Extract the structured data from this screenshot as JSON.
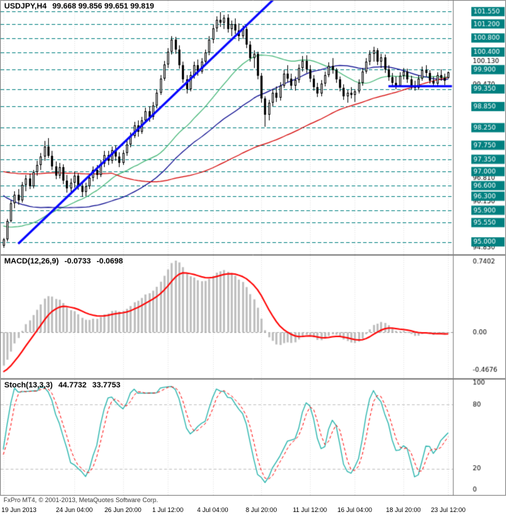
{
  "colors": {
    "background": "#FFFFFF",
    "panel_border": "#808080",
    "level_line": "#008080",
    "grid": "#E0E0E0",
    "candle_outline": "#000000",
    "candle_bull_fill": "#FFFFFF",
    "candle_bear_fill": "#000000",
    "trendline": "#0000FF",
    "macd_histogram": "#C0C0C0",
    "macd_signal": "#FF0000",
    "stoch_main": "#20B2AA",
    "stoch_signal": "#FF0000"
  },
  "header": {
    "symbol_period": "USDJPY,H4",
    "ohlc_values": "99.668 99.856 99.651 99.819"
  },
  "indicators": {
    "macd": {
      "name": "MACD(12,26,9)",
      "value_main": "-0.0733",
      "value_signal": "-0.0698"
    },
    "stoch": {
      "name": "Stoch(13,3,3)",
      "value_main": "44.7732",
      "value_signal": "33.7753"
    }
  },
  "time_axis": {
    "labels": [
      "19 Jun 2013",
      "24 Jun 04:00",
      "26 Jun 20:00",
      "1 Jul 12:00",
      "4 Jul 04:00",
      "8 Jul 20:00",
      "11 Jul 12:00",
      "16 Jul 04:00",
      "18 Jul 20:00",
      "23 Jul 12:00"
    ],
    "bar_positions": [
      0,
      19,
      32,
      44,
      56,
      69,
      82,
      94,
      107,
      119
    ]
  },
  "footer": {
    "copyright": "FxPro MT4, © 2001-2013, MetaQuotes Software Corp."
  },
  "chart_data": [
    {
      "type": "candlestick",
      "symbol": "USDJPY",
      "timeframe": "H4",
      "title": "USDJPY,H4 99.668 99.856 99.651 99.819",
      "current_bar": {
        "open": 99.668,
        "high": 99.856,
        "low": 99.651,
        "close": 99.819
      },
      "ylim": [
        94.79,
        101.8
      ],
      "levels": [
        101.55,
        101.2,
        100.8,
        100.4,
        99.9,
        99.35,
        98.85,
        98.25,
        97.75,
        97.35,
        97.0,
        96.6,
        96.3,
        95.9,
        95.55,
        95.0
      ],
      "axis_price_labels": [
        100.13,
        99.47,
        96.81,
        96.15,
        94.83
      ],
      "moving_averages": [
        {
          "period": 30,
          "color": "#3CB371"
        },
        {
          "period": 50,
          "color": "#00008B"
        },
        {
          "period": 90,
          "color": "#D40000"
        }
      ],
      "trendlines": [
        {
          "from": [
            4,
            94.95
          ],
          "to": [
            73,
            101.97
          ],
          "color": "#0000FF",
          "width": 3
        },
        {
          "from": [
            103,
            99.43
          ],
          "to": [
            120,
            99.43
          ],
          "color": "#0000FF",
          "width": 3
        }
      ],
      "warmup_closes": [
        101.0,
        100.7,
        100.9,
        100.4,
        100.1,
        100.4,
        99.9,
        99.6,
        99.8,
        99.3,
        99.0,
        99.2,
        98.8,
        98.5,
        98.7,
        98.3,
        98.0,
        98.2,
        97.8,
        97.6,
        97.9,
        97.5,
        97.2,
        97.4,
        97.0,
        96.8,
        97.1,
        96.7,
        96.5,
        96.8,
        96.4,
        96.2,
        96.5,
        96.1,
        95.9,
        96.2,
        95.8,
        96.0,
        95.7,
        95.9,
        95.5,
        95.8,
        95.4,
        95.7,
        95.3,
        95.6,
        95.2,
        95.5,
        95.1,
        95.4,
        95.0,
        95.3,
        94.9,
        95.2,
        94.8,
        95.1,
        94.7,
        95.0,
        94.8,
        94.9
      ],
      "candles": [
        [
          94.9,
          95.12,
          94.83,
          95.08
        ],
        [
          95.08,
          95.65,
          95.02,
          95.6
        ],
        [
          95.6,
          96.18,
          95.55,
          96.1
        ],
        [
          96.1,
          96.45,
          95.95,
          96.35
        ],
        [
          96.35,
          96.5,
          96.05,
          96.18
        ],
        [
          96.18,
          96.7,
          96.12,
          96.62
        ],
        [
          96.62,
          96.9,
          96.45,
          96.8
        ],
        [
          96.8,
          96.95,
          96.5,
          96.58
        ],
        [
          96.58,
          97.05,
          96.52,
          96.98
        ],
        [
          96.98,
          97.3,
          96.88,
          97.18
        ],
        [
          97.18,
          97.52,
          97.05,
          97.42
        ],
        [
          97.42,
          97.88,
          97.3,
          97.72
        ],
        [
          97.72,
          97.95,
          97.38,
          97.45
        ],
        [
          97.45,
          97.6,
          97.05,
          97.15
        ],
        [
          97.15,
          97.28,
          96.78,
          96.88
        ],
        [
          96.88,
          97.25,
          96.8,
          97.12
        ],
        [
          97.12,
          97.2,
          96.65,
          96.75
        ],
        [
          96.75,
          96.9,
          96.4,
          96.52
        ],
        [
          96.52,
          96.8,
          96.42,
          96.68
        ],
        [
          96.68,
          97.0,
          96.55,
          96.88
        ],
        [
          96.88,
          96.95,
          96.48,
          96.58
        ],
        [
          96.58,
          96.7,
          96.28,
          96.42
        ],
        [
          96.42,
          96.68,
          96.3,
          96.58
        ],
        [
          96.58,
          96.92,
          96.5,
          96.82
        ],
        [
          96.82,
          97.15,
          96.72,
          97.05
        ],
        [
          97.05,
          97.18,
          96.78,
          96.9
        ],
        [
          96.9,
          97.32,
          96.85,
          97.22
        ],
        [
          97.22,
          97.58,
          97.12,
          97.46
        ],
        [
          97.46,
          97.6,
          97.18,
          97.3
        ],
        [
          97.3,
          97.72,
          97.22,
          97.62
        ],
        [
          97.62,
          97.75,
          97.3,
          97.42
        ],
        [
          97.42,
          97.55,
          97.12,
          97.25
        ],
        [
          97.25,
          97.62,
          97.18,
          97.52
        ],
        [
          97.52,
          97.88,
          97.45,
          97.78
        ],
        [
          97.78,
          98.12,
          97.7,
          98.02
        ],
        [
          98.02,
          98.42,
          97.95,
          98.32
        ],
        [
          98.32,
          98.45,
          98.0,
          98.14
        ],
        [
          98.14,
          98.55,
          98.08,
          98.46
        ],
        [
          98.46,
          98.82,
          98.38,
          98.72
        ],
        [
          98.72,
          98.85,
          98.42,
          98.55
        ],
        [
          98.55,
          98.98,
          98.48,
          98.88
        ],
        [
          98.88,
          99.35,
          98.8,
          99.25
        ],
        [
          99.25,
          99.75,
          99.18,
          99.65
        ],
        [
          99.65,
          100.15,
          99.58,
          100.05
        ],
        [
          100.05,
          100.52,
          99.95,
          100.42
        ],
        [
          100.42,
          100.86,
          100.32,
          100.76
        ],
        [
          100.76,
          100.84,
          100.35,
          100.48
        ],
        [
          100.48,
          100.6,
          99.92,
          100.02
        ],
        [
          100.02,
          100.12,
          99.52,
          99.62
        ],
        [
          99.62,
          99.75,
          99.22,
          99.35
        ],
        [
          99.35,
          99.85,
          99.28,
          99.75
        ],
        [
          99.75,
          100.12,
          99.65,
          100.02
        ],
        [
          100.02,
          100.18,
          99.72,
          99.85
        ],
        [
          99.85,
          100.22,
          99.78,
          100.12
        ],
        [
          100.12,
          100.48,
          100.02,
          100.38
        ],
        [
          100.38,
          100.85,
          100.3,
          100.75
        ],
        [
          100.75,
          101.18,
          100.66,
          101.08
        ],
        [
          101.08,
          101.42,
          100.98,
          101.32
        ],
        [
          101.32,
          101.53,
          101.12,
          101.24
        ],
        [
          101.24,
          101.45,
          101.05,
          101.38
        ],
        [
          101.38,
          101.48,
          100.95,
          101.05
        ],
        [
          101.05,
          101.3,
          100.85,
          101.2
        ],
        [
          101.2,
          101.35,
          100.92,
          101.02
        ],
        [
          101.02,
          101.22,
          100.72,
          100.85
        ],
        [
          100.85,
          101.15,
          100.78,
          101.05
        ],
        [
          101.05,
          101.12,
          100.52,
          100.62
        ],
        [
          100.62,
          100.72,
          100.12,
          100.22
        ],
        [
          100.22,
          100.45,
          99.95,
          100.35
        ],
        [
          100.35,
          100.42,
          99.62,
          99.72
        ],
        [
          99.72,
          99.8,
          98.95,
          99.08
        ],
        [
          99.08,
          99.15,
          98.27,
          98.62
        ],
        [
          98.62,
          99.05,
          98.45,
          98.95
        ],
        [
          98.95,
          99.35,
          98.85,
          99.25
        ],
        [
          99.25,
          99.42,
          98.98,
          99.1
        ],
        [
          99.1,
          99.55,
          99.02,
          99.45
        ],
        [
          99.45,
          99.88,
          99.38,
          99.78
        ],
        [
          99.78,
          100.02,
          99.55,
          99.65
        ],
        [
          99.65,
          99.78,
          99.35,
          99.45
        ],
        [
          99.45,
          99.7,
          99.3,
          99.6
        ],
        [
          99.6,
          100.05,
          99.52,
          99.95
        ],
        [
          99.95,
          100.28,
          99.85,
          100.15
        ],
        [
          100.15,
          100.3,
          99.8,
          99.9
        ],
        [
          99.9,
          100.02,
          99.55,
          99.65
        ],
        [
          99.65,
          99.75,
          99.3,
          99.4
        ],
        [
          99.4,
          99.52,
          99.12,
          99.22
        ],
        [
          99.22,
          99.6,
          99.15,
          99.5
        ],
        [
          99.5,
          99.85,
          99.42,
          99.75
        ],
        [
          99.75,
          100.1,
          99.68,
          100.0
        ],
        [
          100.0,
          100.22,
          99.78,
          99.88
        ],
        [
          99.88,
          99.95,
          99.52,
          99.62
        ],
        [
          99.62,
          99.7,
          99.28,
          99.38
        ],
        [
          99.38,
          99.48,
          99.05,
          99.15
        ],
        [
          99.15,
          99.32,
          98.95,
          99.25
        ],
        [
          99.25,
          99.4,
          99.08,
          99.18
        ],
        [
          99.18,
          99.35,
          98.98,
          99.28
        ],
        [
          99.28,
          99.62,
          99.22,
          99.52
        ],
        [
          99.52,
          99.95,
          99.45,
          99.85
        ],
        [
          99.85,
          100.22,
          99.78,
          100.12
        ],
        [
          100.12,
          100.45,
          100.02,
          100.35
        ],
        [
          100.35,
          100.55,
          100.12,
          100.45
        ],
        [
          100.45,
          100.52,
          100.02,
          100.12
        ],
        [
          100.12,
          100.35,
          99.95,
          100.25
        ],
        [
          100.25,
          100.32,
          99.8,
          99.9
        ],
        [
          99.9,
          100.02,
          99.58,
          99.68
        ],
        [
          99.68,
          99.8,
          99.42,
          99.52
        ],
        [
          99.52,
          99.7,
          99.35,
          99.45
        ],
        [
          99.45,
          99.82,
          99.4,
          99.72
        ],
        [
          99.72,
          99.95,
          99.62,
          99.85
        ],
        [
          99.85,
          99.92,
          99.52,
          99.62
        ],
        [
          99.62,
          99.72,
          99.35,
          99.45
        ],
        [
          99.45,
          99.58,
          99.3,
          99.38
        ],
        [
          99.38,
          99.75,
          99.32,
          99.65
        ],
        [
          99.65,
          99.98,
          99.58,
          99.88
        ],
        [
          99.88,
          100.02,
          99.7,
          99.8
        ],
        [
          99.8,
          99.88,
          99.5,
          99.58
        ],
        [
          99.58,
          99.7,
          99.42,
          99.5
        ],
        [
          99.5,
          99.82,
          99.45,
          99.74
        ],
        [
          99.74,
          99.9,
          99.58,
          99.66
        ],
        [
          99.66,
          99.78,
          99.46,
          99.58
        ],
        [
          99.668,
          99.856,
          99.651,
          99.819
        ]
      ]
    },
    {
      "type": "macd_histogram",
      "title": "MACD(12,26,9) -0.0733 -0.0698",
      "params": [
        12,
        26,
        9
      ],
      "axis_labels": [
        "0.7402",
        "0.00",
        "-0.4676"
      ],
      "ymax": 0.7402,
      "ymin": -0.4676
    },
    {
      "type": "stochastic",
      "title": "Stoch(13,3,3) 44.7732 33.7753",
      "params": [
        13,
        3,
        3
      ],
      "axis_labels": [
        "100",
        "80",
        "20",
        "0"
      ],
      "levels": [
        80,
        20
      ],
      "ylim": [
        0,
        100
      ]
    }
  ]
}
